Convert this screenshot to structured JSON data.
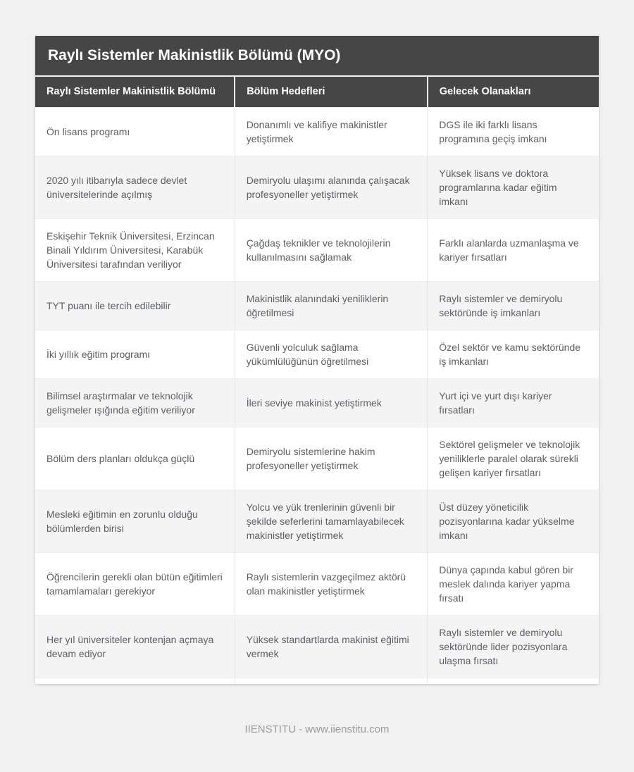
{
  "header": {
    "title": "Raylı Sistemler Makinistlik Bölümü (MYO)"
  },
  "table": {
    "columns": [
      "Raylı Sistemler Makinistlik Bölümü",
      "Bölüm Hedefleri",
      "Gelecek Olanakları"
    ],
    "rows": [
      [
        "Ön lisans programı",
        "Donanımlı ve kalifiye makinistler yetiştirmek",
        "DGS ile iki farklı lisans programına geçiş imkanı"
      ],
      [
        "2020 yılı itibarıyla sadece devlet üniversitelerinde açılmış",
        "Demiryolu ulaşımı alanında çalışacak profesyoneller yetiştirmek",
        "Yüksek lisans ve doktora programlarına kadar eğitim imkanı"
      ],
      [
        "Eskişehir Teknik Üniversitesi, Erzincan Binali Yıldırım Üniversitesi, Karabük Üniversitesi tarafından veriliyor",
        "Çağdaş teknikler ve teknolojilerin kullanılmasını sağlamak",
        "Farklı alanlarda uzmanlaşma ve kariyer fırsatları"
      ],
      [
        "TYT puanı ile tercih edilebilir",
        "Makinistlik alanındaki yeniliklerin öğretilmesi",
        "Raylı sistemler ve demiryolu sektöründe iş imkanları"
      ],
      [
        "İki yıllık eğitim programı",
        "Güvenli yolculuk sağlama yükümlülüğünün öğretilmesi",
        "Özel sektör ve kamu sektöründe iş imkanları"
      ],
      [
        "Bilimsel araştırmalar ve teknolojik gelişmeler ışığında eğitim veriliyor",
        "İleri seviye makinist yetiştirmek",
        "Yurt içi ve yurt dışı kariyer fırsatları"
      ],
      [
        "Bölüm ders planları oldukça güçlü",
        "Demiryolu sistemlerine hakim profesyoneller yetiştirmek",
        "Sektörel gelişmeler ve teknolojik yeniliklerle paralel olarak sürekli gelişen kariyer fırsatları"
      ],
      [
        "Mesleki eğitimin en zorunlu olduğu bölümlerden birisi",
        "Yolcu ve yük trenlerinin güvenli bir şekilde seferlerini tamamlayabilecek makinistler yetiştirmek",
        "Üst düzey yöneticilik pozisyonlarına kadar yükselme imkanı"
      ],
      [
        "Öğrencilerin gerekli olan bütün eğitimleri tamamlamaları gerekiyor",
        "Raylı sistemlerin vazgeçilmez aktörü olan makinistler yetiştirmek",
        "Dünya çapında kabul gören bir meslek dalında kariyer yapma fırsatı"
      ],
      [
        "Her yıl üniversiteler kontenjan açmaya devam ediyor",
        "Yüksek standartlarda makinist eğitimi vermek",
        "Raylı sistemler ve demiryolu sektöründe lider pozisyonlara ulaşma fırsatı"
      ]
    ]
  },
  "footer": {
    "text": "IIENSTITU - www.iienstitu.com"
  },
  "colors": {
    "header_bg": "#464646",
    "header_text": "#ffffff",
    "page_bg": "#f1f1f1",
    "stripe_bg": "#f4f4f4",
    "cell_text": "#5a6066",
    "footer_text": "#9b9b9b"
  }
}
